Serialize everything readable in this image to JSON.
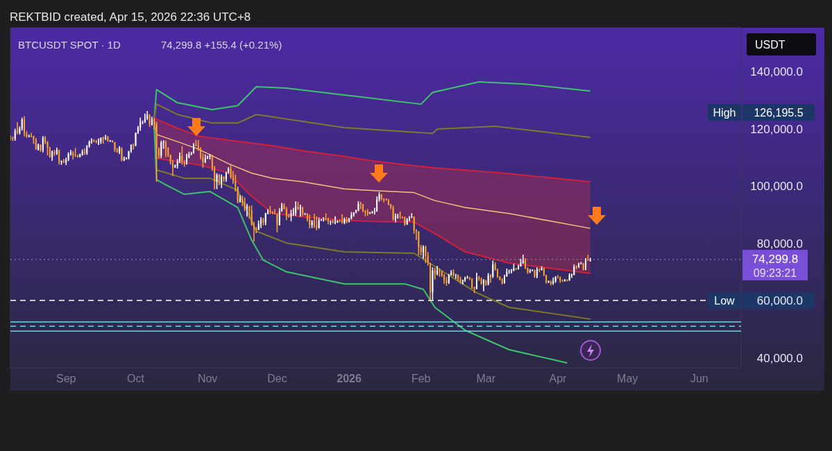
{
  "chart_data": {
    "type": "candlestick",
    "title": "BTCUSDT SPOT · 1D",
    "subtitle": "74,299.8 +155.4 (+0.21%)",
    "ylabel": "USDT",
    "annotations": [
      "REKTBID created, Apr 15, 2026 22:36 UTC+8",
      "High",
      "126,195.5",
      "09:23:21"
    ],
    "xlim": [
      "2025-08-08",
      "2026-06-19"
    ],
    "xticks": [
      {
        "value": "2025-09-01",
        "label": "Sep"
      },
      {
        "value": "2025-10-01",
        "label": "Oct"
      },
      {
        "value": "2025-11-01",
        "label": "Nov"
      },
      {
        "value": "2025-12-01",
        "label": "Dec"
      },
      {
        "value": "2026-01-01",
        "label": "2026"
      },
      {
        "value": "2026-02-01",
        "label": "Feb"
      },
      {
        "value": "2026-03-01",
        "label": "Mar"
      },
      {
        "value": "2026-04-01",
        "label": "Apr"
      },
      {
        "value": "2026-05-01",
        "label": "May"
      },
      {
        "value": "2026-06-01",
        "label": "Jun"
      }
    ],
    "ylim": [
      36500,
      155300
    ],
    "yticks": [
      {
        "value": 40000,
        "label": "40,000.0"
      },
      {
        "value": 60000,
        "label": "60,000.0"
      },
      {
        "value": 80000,
        "label": "80,000.0"
      },
      {
        "value": 100000,
        "label": "100,000.0"
      },
      {
        "value": 120000,
        "label": "120,000.0"
      },
      {
        "value": 140000,
        "label": "140,000.0"
      }
    ],
    "grid": false,
    "ref_lines": [
      {
        "axis": "y",
        "value": 60000,
        "label": "Low",
        "color": "#ffffff",
        "line_style": "dashed"
      },
      {
        "axis": "y",
        "value": 74299.8,
        "label": "74,299.8",
        "color": "#9d8fc9",
        "line_style": "dotted"
      },
      {
        "axis": "y",
        "value": 52500,
        "color": "#6fd3e6",
        "line_style": "solid"
      },
      {
        "axis": "y",
        "value": 51000,
        "color": "#6fd3e6",
        "line_style": "dashed"
      },
      {
        "axis": "y",
        "value": 49300,
        "color": "#6fd3e6",
        "line_style": "solid"
      }
    ],
    "x": [
      "2025-08-08",
      "2025-08-09",
      "2025-08-10",
      "2025-08-11",
      "2025-08-12",
      "2025-08-13",
      "2025-08-14",
      "2025-08-15",
      "2025-08-16",
      "2025-08-17",
      "2025-08-18",
      "2025-08-19",
      "2025-08-20",
      "2025-08-21",
      "2025-08-22",
      "2025-08-23",
      "2025-08-24",
      "2025-08-25",
      "2025-08-26",
      "2025-08-27",
      "2025-08-28",
      "2025-08-29",
      "2025-08-30",
      "2025-08-31",
      "2025-09-01",
      "2025-09-02",
      "2025-09-03",
      "2025-09-04",
      "2025-09-05",
      "2025-09-06",
      "2025-09-07",
      "2025-09-08",
      "2025-09-09",
      "2025-09-10",
      "2025-09-11",
      "2025-09-12",
      "2025-09-13",
      "2025-09-14",
      "2025-09-15",
      "2025-09-16",
      "2025-09-17",
      "2025-09-18",
      "2025-09-19",
      "2025-09-20",
      "2025-09-21",
      "2025-09-22",
      "2025-09-23",
      "2025-09-24",
      "2025-09-25",
      "2025-09-26",
      "2025-09-27",
      "2025-09-28",
      "2025-09-29",
      "2025-09-30",
      "2025-10-01",
      "2025-10-02",
      "2025-10-03",
      "2025-10-04",
      "2025-10-05",
      "2025-10-06",
      "2025-10-07",
      "2025-10-08",
      "2025-10-09",
      "2025-10-10",
      "2025-10-11",
      "2025-10-12",
      "2025-10-13",
      "2025-10-14",
      "2025-10-15",
      "2025-10-16",
      "2025-10-17",
      "2025-10-18",
      "2025-10-19",
      "2025-10-20",
      "2025-10-21",
      "2025-10-22",
      "2025-10-23",
      "2025-10-24",
      "2025-10-25",
      "2025-10-26",
      "2025-10-27",
      "2025-10-28",
      "2025-10-29",
      "2025-10-30",
      "2025-10-31",
      "2025-11-01",
      "2025-11-02",
      "2025-11-03",
      "2025-11-04",
      "2025-11-05",
      "2025-11-06",
      "2025-11-07",
      "2025-11-08",
      "2025-11-09",
      "2025-11-10",
      "2025-11-11",
      "2025-11-12",
      "2025-11-13",
      "2025-11-14",
      "2025-11-15",
      "2025-11-16",
      "2025-11-17",
      "2025-11-18",
      "2025-11-19",
      "2025-11-20",
      "2025-11-21",
      "2025-11-22",
      "2025-11-23",
      "2025-11-24",
      "2025-11-25",
      "2025-11-26",
      "2025-11-27",
      "2025-11-28",
      "2025-11-29",
      "2025-11-30",
      "2025-12-01",
      "2025-12-02",
      "2025-12-03",
      "2025-12-04",
      "2025-12-05",
      "2025-12-06",
      "2025-12-07",
      "2025-12-08",
      "2025-12-09",
      "2025-12-10",
      "2025-12-11",
      "2025-12-12",
      "2025-12-13",
      "2025-12-14",
      "2025-12-15",
      "2025-12-16",
      "2025-12-17",
      "2025-12-18",
      "2025-12-19",
      "2025-12-20",
      "2025-12-21",
      "2025-12-22",
      "2025-12-23",
      "2025-12-24",
      "2025-12-25",
      "2025-12-26",
      "2025-12-27",
      "2025-12-28",
      "2025-12-29",
      "2025-12-30",
      "2025-12-31",
      "2026-01-01",
      "2026-01-02",
      "2026-01-03",
      "2026-01-04",
      "2026-01-05",
      "2026-01-06",
      "2026-01-07",
      "2026-01-08",
      "2026-01-09",
      "2026-01-10",
      "2026-01-11",
      "2026-01-12",
      "2026-01-13",
      "2026-01-14",
      "2026-01-15",
      "2026-01-16",
      "2026-01-17",
      "2026-01-18",
      "2026-01-19",
      "2026-01-20",
      "2026-01-21",
      "2026-01-22",
      "2026-01-23",
      "2026-01-24",
      "2026-01-25",
      "2026-01-26",
      "2026-01-27",
      "2026-01-28",
      "2026-01-29",
      "2026-01-30",
      "2026-01-31",
      "2026-02-01",
      "2026-02-02",
      "2026-02-03",
      "2026-02-04",
      "2026-02-05",
      "2026-02-06",
      "2026-02-07",
      "2026-02-08",
      "2026-02-09",
      "2026-02-10",
      "2026-02-11",
      "2026-02-12",
      "2026-02-13",
      "2026-02-14",
      "2026-02-15",
      "2026-02-16",
      "2026-02-17",
      "2026-02-18",
      "2026-02-19",
      "2026-02-20",
      "2026-02-21",
      "2026-02-22",
      "2026-02-23",
      "2026-02-24",
      "2026-02-25",
      "2026-02-26",
      "2026-02-27",
      "2026-02-28",
      "2026-03-01",
      "2026-03-02",
      "2026-03-03",
      "2026-03-04",
      "2026-03-05",
      "2026-03-06",
      "2026-03-07",
      "2026-03-08",
      "2026-03-09",
      "2026-03-10",
      "2026-03-11",
      "2026-03-12",
      "2026-03-13",
      "2026-03-14",
      "2026-03-15",
      "2026-03-16",
      "2026-03-17",
      "2026-03-18",
      "2026-03-19",
      "2026-03-20",
      "2026-03-21",
      "2026-03-22",
      "2026-03-23",
      "2026-03-24",
      "2026-03-25",
      "2026-03-26",
      "2026-03-27",
      "2026-03-28",
      "2026-03-29",
      "2026-03-30",
      "2026-03-31",
      "2026-04-01",
      "2026-04-02",
      "2026-04-03",
      "2026-04-04",
      "2026-04-05",
      "2026-04-06",
      "2026-04-07",
      "2026-04-08",
      "2026-04-09",
      "2026-04-10",
      "2026-04-11",
      "2026-04-12",
      "2026-04-13",
      "2026-04-14",
      "2026-04-15"
    ],
    "ohlc": [
      [
        117000,
        117700,
        115900,
        116600
      ],
      [
        116600,
        117300,
        115800,
        116500
      ],
      [
        116500,
        120000,
        115800,
        119300
      ],
      [
        119300,
        122300,
        118100,
        118700
      ],
      [
        118700,
        120800,
        118000,
        120100
      ],
      [
        120100,
        123900,
        119400,
        123300
      ],
      [
        123300,
        124400,
        117300,
        118300
      ],
      [
        118300,
        119200,
        116800,
        117400
      ],
      [
        117400,
        118000,
        117000,
        117500
      ],
      [
        117500,
        118600,
        117000,
        117400
      ],
      [
        117400,
        117600,
        114700,
        116200
      ],
      [
        116200,
        116800,
        112600,
        112900
      ],
      [
        112900,
        114800,
        112400,
        114300
      ],
      [
        114300,
        114600,
        111900,
        112500
      ],
      [
        112500,
        117400,
        111700,
        116900
      ],
      [
        116900,
        117500,
        114600,
        115400
      ],
      [
        115400,
        115700,
        110700,
        113500
      ],
      [
        113500,
        113700,
        109900,
        110100
      ],
      [
        110100,
        112400,
        108800,
        111800
      ],
      [
        111800,
        112600,
        110600,
        111300
      ],
      [
        111300,
        113400,
        110900,
        112600
      ],
      [
        112600,
        112700,
        107500,
        108400
      ],
      [
        108400,
        108900,
        107400,
        108800
      ],
      [
        108800,
        109500,
        108000,
        108200
      ],
      [
        108200,
        109900,
        107300,
        109200
      ],
      [
        109200,
        111800,
        108700,
        111200
      ],
      [
        111200,
        112600,
        110600,
        111700
      ],
      [
        111700,
        112200,
        109300,
        110700
      ],
      [
        110700,
        113300,
        110200,
        110600
      ],
      [
        110600,
        111000,
        109900,
        110200
      ],
      [
        110200,
        111300,
        110000,
        111100
      ],
      [
        111100,
        112800,
        110600,
        112000
      ],
      [
        112000,
        113200,
        110900,
        111500
      ],
      [
        111500,
        114300,
        110900,
        113900
      ],
      [
        113900,
        115900,
        113400,
        115500
      ],
      [
        115500,
        116700,
        114800,
        116000
      ],
      [
        116000,
        116300,
        115300,
        115900
      ],
      [
        115900,
        116100,
        114900,
        115300
      ],
      [
        115300,
        116600,
        114300,
        115400
      ],
      [
        115400,
        117000,
        114700,
        116800
      ],
      [
        116800,
        117300,
        114800,
        116400
      ],
      [
        116400,
        117900,
        116100,
        117100
      ],
      [
        117100,
        117500,
        115500,
        115700
      ],
      [
        115700,
        116100,
        115400,
        115800
      ],
      [
        115800,
        116000,
        115200,
        115300
      ],
      [
        115300,
        115400,
        111900,
        112700
      ],
      [
        112700,
        113300,
        111600,
        112000
      ],
      [
        112000,
        113900,
        111200,
        113300
      ],
      [
        113300,
        113500,
        108600,
        109000
      ],
      [
        109000,
        110300,
        108700,
        109600
      ],
      [
        109600,
        110000,
        109300,
        109700
      ],
      [
        109700,
        112300,
        109300,
        112100
      ],
      [
        112100,
        114500,
        111600,
        114400
      ],
      [
        114400,
        114800,
        112700,
        114100
      ],
      [
        114100,
        118700,
        113900,
        118600
      ],
      [
        118600,
        121000,
        118200,
        120500
      ],
      [
        120500,
        123900,
        119300,
        122300
      ],
      [
        122300,
        122900,
        121600,
        122400
      ],
      [
        122400,
        125300,
        122000,
        123500
      ],
      [
        123500,
        126195.5,
        123100,
        124800
      ],
      [
        124800,
        125100,
        120600,
        121500
      ],
      [
        121500,
        124200,
        121100,
        123300
      ],
      [
        123300,
        123800,
        119700,
        121700
      ],
      [
        121700,
        122500,
        101500,
        113200
      ],
      [
        113200,
        113400,
        109600,
        110600
      ],
      [
        110600,
        115800,
        109700,
        115200
      ],
      [
        115200,
        116000,
        113000,
        115300
      ],
      [
        115300,
        115900,
        110100,
        113000
      ],
      [
        113000,
        113600,
        110100,
        110800
      ],
      [
        110800,
        111000,
        107500,
        108200
      ],
      [
        108200,
        109200,
        103500,
        106500
      ],
      [
        106500,
        107500,
        106300,
        107200
      ],
      [
        107200,
        109400,
        106100,
        108700
      ],
      [
        108700,
        111700,
        108000,
        110600
      ],
      [
        110600,
        114000,
        107500,
        108500
      ],
      [
        108500,
        109100,
        106700,
        107600
      ],
      [
        107600,
        111300,
        107500,
        110100
      ],
      [
        110100,
        112000,
        109700,
        111000
      ],
      [
        111000,
        111900,
        110800,
        111600
      ],
      [
        111600,
        115000,
        111300,
        114500
      ],
      [
        114500,
        116100,
        113800,
        114100
      ],
      [
        114100,
        116000,
        112300,
        112900
      ],
      [
        112900,
        113600,
        109300,
        110000
      ],
      [
        110000,
        111500,
        106400,
        108300
      ],
      [
        108300,
        111000,
        108000,
        109600
      ],
      [
        109600,
        110600,
        109400,
        110100
      ],
      [
        110100,
        111200,
        109300,
        110500
      ],
      [
        110500,
        110800,
        105300,
        106500
      ],
      [
        106500,
        107000,
        98900,
        101600
      ],
      [
        101600,
        104500,
        98900,
        103900
      ],
      [
        103900,
        104200,
        100300,
        101300
      ],
      [
        101300,
        104000,
        99300,
        103300
      ],
      [
        103300,
        103400,
        101400,
        102300
      ],
      [
        102300,
        105000,
        101500,
        104700
      ],
      [
        104700,
        106600,
        104300,
        106000
      ],
      [
        106000,
        107500,
        102500,
        103100
      ],
      [
        103100,
        105300,
        100800,
        101700
      ],
      [
        101700,
        104000,
        98100,
        99700
      ],
      [
        99700,
        99800,
        94000,
        94400
      ],
      [
        94400,
        96800,
        94200,
        95600
      ],
      [
        95600,
        96600,
        93000,
        94200
      ],
      [
        94200,
        96000,
        91200,
        92200
      ],
      [
        92200,
        93800,
        89300,
        92900
      ],
      [
        92900,
        93100,
        88600,
        91500
      ],
      [
        91500,
        93200,
        86100,
        86600
      ],
      [
        86600,
        87500,
        80600,
        85100
      ],
      [
        85100,
        85600,
        83500,
        84700
      ],
      [
        84700,
        88000,
        84600,
        86800
      ],
      [
        86800,
        89100,
        85300,
        88300
      ],
      [
        88300,
        88900,
        86200,
        87300
      ],
      [
        87300,
        90600,
        86300,
        90500
      ],
      [
        90500,
        91900,
        90100,
        91300
      ],
      [
        91300,
        93000,
        90200,
        90900
      ],
      [
        90900,
        91200,
        90200,
        90400
      ],
      [
        90400,
        91900,
        90100,
        90300
      ],
      [
        90300,
        90400,
        83800,
        86300
      ],
      [
        86300,
        92300,
        86200,
        91300
      ],
      [
        91300,
        94100,
        91000,
        93400
      ],
      [
        93400,
        94000,
        91800,
        92100
      ],
      [
        92100,
        92700,
        88100,
        89400
      ],
      [
        89400,
        90300,
        88900,
        89300
      ],
      [
        89300,
        91700,
        87700,
        90400
      ],
      [
        90400,
        92300,
        89600,
        90600
      ],
      [
        90600,
        94600,
        89600,
        92700
      ],
      [
        92700,
        94500,
        91600,
        92000
      ],
      [
        92000,
        93500,
        89300,
        92500
      ],
      [
        92500,
        92800,
        89500,
        90300
      ],
      [
        90300,
        90600,
        89800,
        90400
      ],
      [
        90400,
        90500,
        87600,
        88200
      ],
      [
        88200,
        90000,
        85200,
        86400
      ],
      [
        86400,
        88100,
        85300,
        87800
      ],
      [
        87800,
        90300,
        85300,
        86100
      ],
      [
        86100,
        89400,
        84500,
        85500
      ],
      [
        85500,
        89000,
        85100,
        88100
      ],
      [
        88100,
        88500,
        87800,
        88300
      ],
      [
        88300,
        89100,
        87600,
        88600
      ],
      [
        88600,
        90500,
        87900,
        88500
      ],
      [
        88500,
        88900,
        86600,
        87600
      ],
      [
        87600,
        88000,
        86400,
        87700
      ],
      [
        87700,
        88300,
        86900,
        87200
      ],
      [
        87200,
        89400,
        86600,
        87300
      ],
      [
        87300,
        88000,
        87100,
        87800
      ],
      [
        87800,
        88200,
        87400,
        87700
      ],
      [
        87700,
        90200,
        86800,
        87100
      ],
      [
        87100,
        89000,
        86700,
        88400
      ],
      [
        88400,
        89100,
        87000,
        87500
      ],
      [
        87500,
        88800,
        87300,
        88700
      ],
      [
        88700,
        90900,
        88300,
        89900
      ],
      [
        89900,
        90900,
        89300,
        90600
      ],
      [
        90600,
        91800,
        90500,
        91400
      ],
      [
        91400,
        94700,
        91200,
        93800
      ],
      [
        93800,
        94500,
        91900,
        93700
      ],
      [
        93700,
        93800,
        90800,
        91300
      ],
      [
        91300,
        91600,
        89400,
        91000
      ],
      [
        91000,
        91900,
        89600,
        90500
      ],
      [
        90500,
        90900,
        90200,
        90600
      ],
      [
        90600,
        91300,
        90300,
        90900
      ],
      [
        90900,
        92400,
        90000,
        91200
      ],
      [
        91200,
        96300,
        91000,
        95300
      ],
      [
        95300,
        97900,
        94600,
        97000
      ],
      [
        97000,
        97200,
        94900,
        95600
      ],
      [
        95600,
        95800,
        94300,
        95500
      ],
      [
        95500,
        95600,
        94900,
        95100
      ],
      [
        95100,
        95500,
        93200,
        93600
      ],
      [
        93600,
        93700,
        91900,
        92500
      ],
      [
        92500,
        93200,
        87900,
        88300
      ],
      [
        88300,
        90400,
        87300,
        89400
      ],
      [
        89400,
        90300,
        88600,
        89500
      ],
      [
        89500,
        91100,
        88500,
        89200
      ],
      [
        89200,
        89400,
        88600,
        89000
      ],
      [
        89000,
        89300,
        86100,
        86600
      ],
      [
        86600,
        88800,
        86400,
        88300
      ],
      [
        88300,
        89500,
        87700,
        89200
      ],
      [
        89200,
        90500,
        88800,
        89300
      ],
      [
        89300,
        89400,
        83300,
        84600
      ],
      [
        84600,
        84900,
        81100,
        84100
      ],
      [
        84100,
        84200,
        75800,
        78600
      ],
      [
        78600,
        79400,
        75700,
        76900
      ],
      [
        76900,
        79300,
        74600,
        78700
      ],
      [
        78700,
        79200,
        73100,
        75600
      ],
      [
        75600,
        76900,
        72200,
        73000
      ],
      [
        73000,
        73200,
        60000,
        62900
      ],
      [
        62900,
        71600,
        60300,
        70500
      ],
      [
        70500,
        71400,
        67400,
        69300
      ],
      [
        69300,
        72100,
        68800,
        70500
      ],
      [
        70500,
        71200,
        68300,
        70100
      ],
      [
        70100,
        70400,
        68200,
        68800
      ],
      [
        68800,
        69300,
        65800,
        67000
      ],
      [
        67000,
        68200,
        65100,
        66200
      ],
      [
        66200,
        69300,
        65800,
        68900
      ],
      [
        68900,
        70600,
        68700,
        69800
      ],
      [
        69800,
        70900,
        68300,
        68800
      ],
      [
        68800,
        69300,
        67600,
        68900
      ],
      [
        68900,
        69100,
        66700,
        67500
      ],
      [
        67500,
        68400,
        65900,
        66400
      ],
      [
        66400,
        67300,
        65600,
        67000
      ],
      [
        67000,
        68300,
        66500,
        67900
      ],
      [
        67900,
        68700,
        67600,
        68000
      ],
      [
        68000,
        68200,
        67100,
        67600
      ],
      [
        67600,
        67800,
        64100,
        64600
      ],
      [
        64600,
        64900,
        62600,
        64100
      ],
      [
        64100,
        69700,
        63900,
        68000
      ],
      [
        68000,
        68600,
        66900,
        67500
      ],
      [
        67500,
        68100,
        65500,
        65900
      ],
      [
        65900,
        67500,
        63200,
        66900
      ],
      [
        66900,
        67200,
        65100,
        65700
      ],
      [
        65700,
        69600,
        65300,
        68800
      ],
      [
        68800,
        69300,
        66200,
        68300
      ],
      [
        68300,
        74000,
        67900,
        72600
      ],
      [
        72600,
        73400,
        70400,
        70900
      ],
      [
        70900,
        71200,
        67900,
        68200
      ],
      [
        68200,
        68500,
        67000,
        67300
      ],
      [
        67300,
        67800,
        65600,
        66000
      ],
      [
        66000,
        69000,
        65900,
        68400
      ],
      [
        68400,
        71200,
        68300,
        69900
      ],
      [
        69900,
        70800,
        69300,
        70200
      ],
      [
        70200,
        71000,
        69500,
        70500
      ],
      [
        70500,
        72800,
        70200,
        71200
      ],
      [
        71200,
        71400,
        70600,
        70900
      ],
      [
        70900,
        72500,
        70800,
        72000
      ],
      [
        72000,
        74600,
        71800,
        73000
      ],
      [
        73000,
        76000,
        72900,
        74100
      ],
      [
        74100,
        74800,
        70900,
        71300
      ],
      [
        71300,
        71600,
        69300,
        69800
      ],
      [
        69800,
        71000,
        69600,
        70500
      ],
      [
        70500,
        70900,
        70200,
        70600
      ],
      [
        70600,
        70800,
        67900,
        68400
      ],
      [
        68400,
        71600,
        67800,
        70900
      ],
      [
        70900,
        71300,
        69900,
        70600
      ],
      [
        70600,
        72000,
        70500,
        71300
      ],
      [
        71300,
        71500,
        68500,
        68800
      ],
      [
        68800,
        69000,
        65900,
        66300
      ],
      [
        66300,
        67000,
        66100,
        66500
      ],
      [
        66500,
        67000,
        65300,
        65900
      ],
      [
        65900,
        68000,
        65500,
        66800
      ],
      [
        66800,
        68500,
        66200,
        68200
      ],
      [
        68200,
        68900,
        67700,
        68100
      ],
      [
        68100,
        68400,
        66200,
        66900
      ],
      [
        66900,
        67300,
        66500,
        66800
      ],
      [
        66800,
        67500,
        66600,
        67200
      ],
      [
        67200,
        67400,
        66700,
        67000
      ],
      [
        67000,
        69500,
        66900,
        68900
      ],
      [
        68900,
        69400,
        67900,
        69000
      ],
      [
        69000,
        72600,
        68800,
        71900
      ],
      [
        71900,
        72300,
        70900,
        71800
      ],
      [
        71800,
        73200,
        71400,
        72900
      ],
      [
        72900,
        73500,
        72600,
        73000
      ],
      [
        73000,
        73100,
        70500,
        70700
      ],
      [
        70700,
        74800,
        70600,
        74400
      ],
      [
        74400,
        76000,
        73800,
        74100
      ],
      [
        74100,
        74900,
        73600,
        74299.8
      ]
    ],
    "colors": [
      "#f7a035",
      "#f7a035",
      "#ffffff",
      "#f7a035",
      "#ffffff",
      "#ffffff",
      "#f7a035",
      "#f7a035",
      "#ffffff",
      "#f7a035",
      "#f7a035",
      "#f7a035",
      "#ffffff",
      "#f7a035",
      "#ffffff",
      "#f7a035",
      "#f7a035",
      "#f7a035",
      "#ffffff",
      "#f7a035",
      "#ffffff",
      "#f7a035",
      "#ffffff",
      "#f7a035",
      "#ffffff",
      "#ffffff",
      "#ffffff",
      "#f7a035",
      "#f7a035",
      "#f7a035",
      "#ffffff",
      "#ffffff",
      "#f7a035",
      "#ffffff",
      "#ffffff",
      "#ffffff",
      "#f7a035",
      "#f7a035",
      "#ffffff",
      "#ffffff",
      "#f7a035",
      "#ffffff",
      "#f7a035",
      "#ffffff",
      "#f7a035",
      "#f7a035",
      "#f7a035",
      "#ffffff",
      "#f7a035",
      "#ffffff",
      "#ffffff",
      "#ffffff",
      "#ffffff",
      "#f7a035",
      "#ffffff",
      "#ffffff",
      "#ffffff",
      "#ffffff",
      "#ffffff",
      "#ffffff",
      "#f7a035",
      "#ffffff",
      "#f7a035",
      "#f7a035",
      "#f7a035",
      "#ffffff",
      "#ffffff",
      "#f7a035",
      "#f7a035",
      "#f7a035",
      "#f7a035",
      "#ffffff",
      "#ffffff",
      "#ffffff",
      "#f7a035",
      "#f7a035",
      "#ffffff",
      "#ffffff",
      "#ffffff",
      "#ffffff",
      "#f7a035",
      "#f7a035",
      "#f7a035",
      "#f7a035",
      "#ffffff",
      "#ffffff",
      "#ffffff",
      "#f7a035",
      "#f7a035",
      "#ffffff",
      "#f7a035",
      "#ffffff",
      "#f7a035",
      "#ffffff",
      "#ffffff",
      "#f7a035",
      "#f7a035",
      "#f7a035",
      "#f7a035",
      "#ffffff",
      "#f7a035",
      "#f7a035",
      "#ffffff",
      "#f7a035",
      "#f7a035",
      "#f7a035",
      "#f7a035",
      "#ffffff",
      "#ffffff",
      "#f7a035",
      "#ffffff",
      "#ffffff",
      "#f7a035",
      "#f7a035",
      "#f7a035",
      "#f7a035",
      "#ffffff",
      "#ffffff",
      "#f7a035",
      "#f7a035",
      "#f7a035",
      "#ffffff",
      "#ffffff",
      "#ffffff",
      "#f7a035",
      "#ffffff",
      "#f7a035",
      "#ffffff",
      "#f7a035",
      "#f7a035",
      "#ffffff",
      "#f7a035",
      "#f7a035",
      "#ffffff",
      "#ffffff",
      "#ffffff",
      "#f7a035",
      "#f7a035",
      "#ffffff",
      "#f7a035",
      "#ffffff",
      "#ffffff",
      "#f7a035",
      "#f7a035",
      "#ffffff",
      "#f7a035",
      "#ffffff",
      "#ffffff",
      "#ffffff",
      "#ffffff",
      "#ffffff",
      "#f7a035",
      "#f7a035",
      "#f7a035",
      "#f7a035",
      "#ffffff",
      "#ffffff",
      "#ffffff",
      "#ffffff",
      "#ffffff",
      "#f7a035",
      "#f7a035",
      "#f7a035",
      "#f7a035",
      "#f7a035",
      "#f7a035",
      "#ffffff",
      "#ffffff",
      "#f7a035",
      "#f7a035",
      "#f7a035",
      "#ffffff",
      "#ffffff",
      "#ffffff",
      "#f7a035",
      "#f7a035",
      "#f7a035",
      "#f7a035",
      "#ffffff",
      "#f7a035",
      "#f7a035",
      "#f7a035",
      "#ffffff",
      "#f7a035",
      "#ffffff",
      "#f7a035",
      "#f7a035",
      "#f7a035",
      "#f7a035",
      "#ffffff",
      "#ffffff",
      "#f7a035",
      "#ffffff",
      "#f7a035",
      "#f7a035",
      "#ffffff",
      "#ffffff",
      "#ffffff",
      "#f7a035",
      "#f7a035",
      "#f7a035",
      "#ffffff",
      "#f7a035",
      "#f7a035",
      "#ffffff",
      "#f7a035",
      "#ffffff",
      "#f7a035",
      "#ffffff",
      "#f7a035",
      "#f7a035",
      "#f7a035",
      "#f7a035",
      "#ffffff",
      "#ffffff",
      "#ffffff",
      "#ffffff",
      "#ffffff",
      "#f7a035",
      "#ffffff",
      "#ffffff",
      "#ffffff",
      "#f7a035",
      "#f7a035",
      "#ffffff",
      "#ffffff",
      "#f7a035",
      "#ffffff",
      "#f7a035",
      "#ffffff",
      "#f7a035",
      "#f7a035",
      "#ffffff",
      "#f7a035",
      "#ffffff",
      "#ffffff",
      "#f7a035",
      "#f7a035",
      "#f7a035",
      "#ffffff",
      "#f7a035",
      "#ffffff",
      "#ffffff",
      "#ffffff",
      "#f7a035",
      "#ffffff",
      "#ffffff",
      "#f7a035",
      "#ffffff",
      "#f7a035",
      "#ffffff"
    ],
    "series": [
      {
        "type": "line",
        "color": "#3ec46d",
        "x": [
          "2025-10-09",
          "2025-10-10",
          "2025-10-19",
          "2025-11-03",
          "2025-11-14",
          "2025-11-22",
          "2025-12-05",
          "2025-12-30",
          "2026-02-01",
          "2026-02-06",
          "2026-02-26",
          "2026-03-18",
          "2026-04-15"
        ],
        "values": [
          123500,
          133700,
          129100,
          126700,
          128100,
          134700,
          134200,
          131800,
          128600,
          132700,
          136400,
          135600,
          133200
        ]
      },
      {
        "type": "line",
        "color": "#7d7a2a",
        "x": [
          "2025-10-09",
          "2025-10-10",
          "2025-10-19",
          "2025-11-03",
          "2025-11-14",
          "2025-11-22",
          "2025-12-30",
          "2026-02-06",
          "2026-02-08",
          "2026-03-05",
          "2026-04-15"
        ],
        "values": [
          123200,
          128600,
          125000,
          122000,
          122000,
          125000,
          120400,
          118400,
          119900,
          120900,
          117000
        ]
      },
      {
        "type": "line",
        "color": "#f2c57c",
        "x": [
          "2025-10-09",
          "2025-10-10",
          "2025-10-19",
          "2025-10-28",
          "2025-11-10",
          "2025-11-20",
          "2025-11-29",
          "2025-12-12",
          "2025-12-30",
          "2026-01-12",
          "2026-01-29",
          "2026-02-07",
          "2026-02-20",
          "2026-03-11",
          "2026-04-15"
        ],
        "values": [
          123000,
          118000,
          115500,
          112900,
          107800,
          104500,
          102700,
          101500,
          99000,
          98400,
          97700,
          94900,
          92500,
          90400,
          85200
        ],
        "lower": [
          123000,
          109700,
          108500,
          107500,
          104600,
          96400,
          90500,
          89200,
          88000,
          87600,
          87400,
          83300,
          77000,
          73100,
          69500
        ],
        "upper": [
          124000,
          123300,
          120200,
          117500,
          116000,
          115000,
          114100,
          112300,
          110300,
          108700,
          107100,
          106300,
          105600,
          104300,
          101500
        ]
      },
      {
        "type": "line",
        "color": "#d0213c",
        "x": [
          "2025-10-09",
          "2025-10-10",
          "2025-10-19",
          "2025-10-28",
          "2025-11-10",
          "2025-11-20",
          "2025-11-29",
          "2025-12-12",
          "2025-12-30",
          "2026-01-12",
          "2026-01-29",
          "2026-02-07",
          "2026-02-20",
          "2026-03-11",
          "2026-04-15"
        ],
        "values": [
          124000,
          123300,
          120200,
          117500,
          116000,
          115000,
          114100,
          112300,
          110300,
          108700,
          107100,
          106300,
          105600,
          104300,
          101500
        ]
      },
      {
        "type": "line",
        "color": "#d0213c",
        "x": [
          "2025-10-09",
          "2025-10-10",
          "2025-10-19",
          "2025-10-28",
          "2025-11-10",
          "2025-11-20",
          "2025-11-29",
          "2025-12-12",
          "2025-12-30",
          "2026-01-12",
          "2026-01-29",
          "2026-02-07",
          "2026-02-20",
          "2026-03-11",
          "2026-04-15"
        ],
        "values": [
          123000,
          109700,
          108500,
          107500,
          104600,
          96400,
          90500,
          89200,
          88000,
          87600,
          87400,
          83300,
          77000,
          73100,
          69500
        ]
      },
      {
        "type": "line",
        "color": "#7d7a2a",
        "x": [
          "2025-10-09",
          "2025-10-10",
          "2025-10-22",
          "2025-11-02",
          "2025-11-14",
          "2025-11-22",
          "2025-12-05",
          "2025-12-30",
          "2026-01-29",
          "2026-02-07",
          "2026-02-25",
          "2026-03-11",
          "2026-04-15"
        ],
        "values": [
          121500,
          105600,
          102700,
          102700,
          98500,
          84200,
          80100,
          77000,
          76500,
          71900,
          62700,
          57600,
          53500
        ]
      },
      {
        "type": "line",
        "color": "#3ec46d",
        "x": [
          "2025-10-09",
          "2025-10-10",
          "2025-10-15",
          "2025-10-22",
          "2025-11-02",
          "2025-11-14",
          "2025-11-20",
          "2025-11-25",
          "2025-12-05",
          "2025-12-30",
          "2026-01-25",
          "2026-02-02",
          "2026-02-07",
          "2026-02-20",
          "2026-03-11",
          "2026-04-05"
        ],
        "values": [
          121000,
          102200,
          100000,
          97100,
          98100,
          92500,
          81100,
          74100,
          70000,
          65800,
          65800,
          63900,
          57600,
          49600,
          42800,
          38200
        ]
      }
    ]
  }
}
